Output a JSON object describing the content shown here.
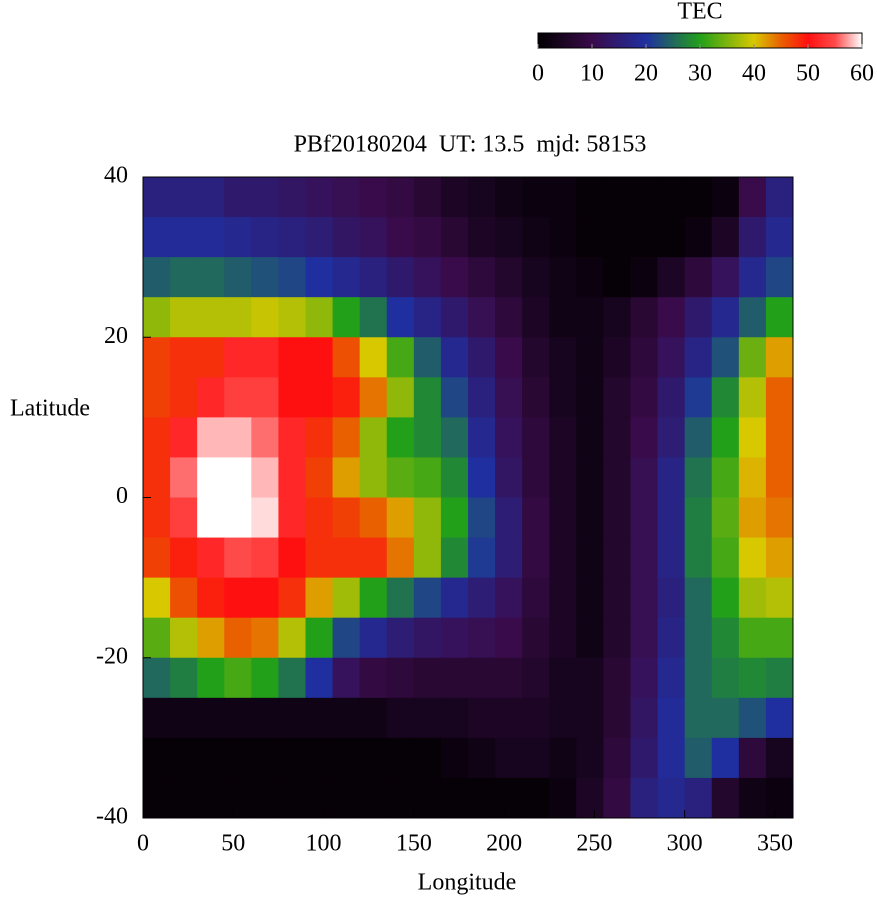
{
  "chart_data": {
    "type": "heatmap",
    "title": "PBf20180204  UT: 13.5  mjd: 58153",
    "xlabel": "Longitude",
    "ylabel": "Latitude",
    "colorbar_label": "TEC",
    "xlim": [
      0,
      360
    ],
    "xticks": [
      0,
      50,
      100,
      150,
      200,
      250,
      300,
      350
    ],
    "ylim": [
      -40,
      40
    ],
    "yticks": [
      -40,
      -20,
      0,
      20,
      40
    ],
    "clim": [
      0,
      60
    ],
    "cticks": [
      0,
      10,
      20,
      30,
      40,
      50,
      60
    ],
    "colorscale": [
      [
        0,
        "#000000"
      ],
      [
        10,
        "#3a0b4a"
      ],
      [
        20,
        "#1f2fa0"
      ],
      [
        30,
        "#22a01a"
      ],
      [
        40,
        "#d8c800"
      ],
      [
        45,
        "#e86000"
      ],
      [
        50,
        "#ff1010"
      ],
      [
        55,
        "#ff4a4a"
      ],
      [
        60,
        "#ffffff"
      ]
    ],
    "xbins": [
      0,
      15,
      30,
      45,
      60,
      75,
      90,
      105,
      120,
      135,
      150,
      165,
      180,
      195,
      210,
      225,
      240,
      255,
      270,
      285,
      300,
      315,
      330,
      345,
      360
    ],
    "ybins": [
      40,
      35,
      30,
      25,
      20,
      15,
      10,
      5,
      0,
      -5,
      -10,
      -15,
      -20,
      -25,
      -30,
      -35,
      -40
    ],
    "z": [
      [
        16,
        16,
        16,
        14,
        14,
        13,
        12,
        11,
        10,
        9,
        7,
        5,
        4,
        3,
        2,
        2,
        1,
        1,
        1,
        1,
        1,
        2,
        10,
        16
      ],
      [
        19,
        19,
        19,
        18,
        17,
        16,
        15,
        13,
        12,
        10,
        9,
        7,
        5,
        4,
        3,
        2,
        1,
        1,
        1,
        1,
        2,
        5,
        14,
        18
      ],
      [
        24,
        25,
        25,
        24,
        23,
        22,
        20,
        18,
        16,
        14,
        12,
        10,
        8,
        6,
        4,
        3,
        2,
        1,
        2,
        5,
        8,
        12,
        18,
        22
      ],
      [
        36,
        38,
        38,
        38,
        39,
        38,
        36,
        30,
        26,
        20,
        17,
        14,
        11,
        8,
        5,
        3,
        3,
        4,
        7,
        10,
        14,
        18,
        24,
        30
      ],
      [
        47,
        48,
        48,
        52,
        52,
        50,
        50,
        46,
        40,
        32,
        24,
        18,
        14,
        10,
        6,
        4,
        3,
        5,
        8,
        12,
        17,
        23,
        34,
        42
      ],
      [
        47,
        48,
        52,
        54,
        54,
        50,
        50,
        49,
        44,
        36,
        28,
        22,
        16,
        11,
        7,
        4,
        3,
        6,
        9,
        14,
        21,
        28,
        38,
        45
      ],
      [
        48,
        52,
        58,
        58,
        56,
        52,
        48,
        45,
        36,
        30,
        28,
        25,
        18,
        12,
        8,
        5,
        3,
        6,
        10,
        15,
        24,
        30,
        40,
        45
      ],
      [
        48,
        56,
        60,
        60,
        58,
        52,
        47,
        42,
        36,
        33,
        32,
        28,
        20,
        13,
        8,
        5,
        3,
        6,
        11,
        17,
        26,
        32,
        41,
        45
      ],
      [
        48,
        54,
        60,
        60,
        59,
        52,
        48,
        47,
        45,
        42,
        36,
        30,
        22,
        15,
        9,
        5,
        3,
        6,
        11,
        17,
        27,
        33,
        42,
        44
      ],
      [
        47,
        49,
        52,
        55,
        54,
        50,
        48,
        48,
        48,
        44,
        36,
        28,
        21,
        15,
        9,
        5,
        3,
        6,
        11,
        17,
        27,
        32,
        40,
        42
      ],
      [
        40,
        46,
        49,
        50,
        50,
        48,
        42,
        37,
        30,
        26,
        22,
        18,
        15,
        12,
        8,
        5,
        3,
        6,
        11,
        16,
        25,
        30,
        37,
        38
      ],
      [
        33,
        38,
        42,
        45,
        44,
        38,
        30,
        22,
        18,
        15,
        13,
        12,
        11,
        10,
        7,
        5,
        3,
        6,
        11,
        17,
        25,
        28,
        32,
        32
      ],
      [
        25,
        27,
        30,
        32,
        30,
        26,
        20,
        12,
        9,
        8,
        7,
        7,
        7,
        7,
        6,
        4,
        4,
        7,
        12,
        18,
        25,
        27,
        28,
        27
      ],
      [
        3,
        3,
        3,
        3,
        3,
        3,
        3,
        3,
        3,
        4,
        4,
        4,
        5,
        5,
        5,
        4,
        4,
        7,
        13,
        19,
        25,
        25,
        23,
        20
      ],
      [
        1,
        1,
        1,
        1,
        1,
        1,
        1,
        1,
        1,
        1,
        1,
        2,
        3,
        4,
        4,
        3,
        4,
        8,
        14,
        19,
        24,
        20,
        8,
        4
      ],
      [
        1,
        1,
        1,
        1,
        1,
        1,
        1,
        1,
        1,
        1,
        1,
        1,
        1,
        1,
        1,
        2,
        5,
        9,
        16,
        18,
        16,
        6,
        3,
        2
      ]
    ]
  }
}
